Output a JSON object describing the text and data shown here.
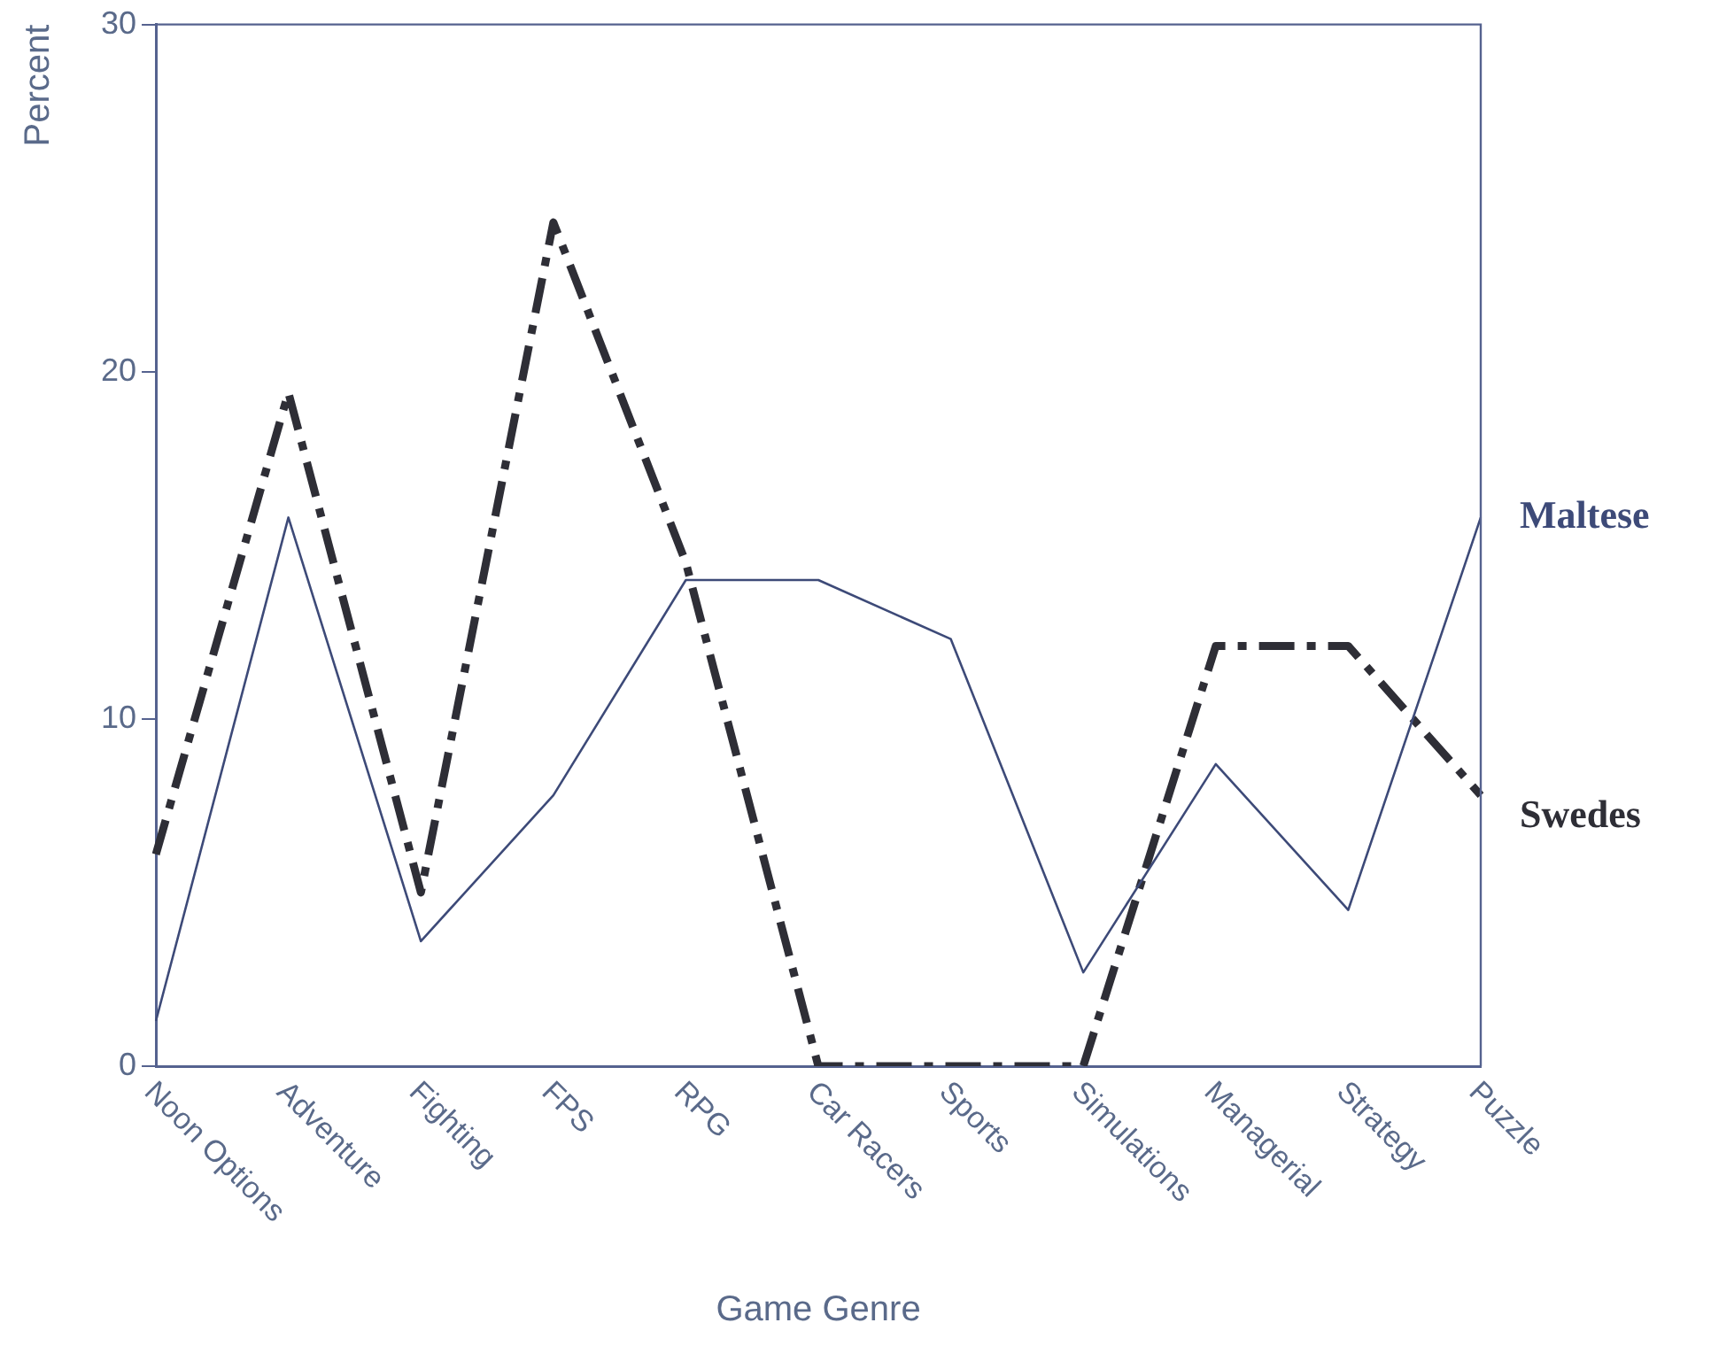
{
  "chart_data": {
    "type": "line",
    "xlabel": "Game Genre",
    "ylabel": "Percent",
    "categories": [
      "Noon Options",
      "Adventure",
      "Fighting",
      "FPS",
      "RPG",
      "Car Racers",
      "Sports",
      "Simulations",
      "Managerial",
      "Strategy",
      "Puzzle"
    ],
    "series": [
      {
        "name": "Maltese",
        "color": "#3d4a78",
        "line_style": "solid",
        "values": [
          1.3,
          15.8,
          3.6,
          7.8,
          14,
          14,
          12.3,
          2.7,
          8.7,
          4.5,
          15.8
        ]
      },
      {
        "name": "Swedes",
        "color": "#2e2e36",
        "line_style": "dashed",
        "values": [
          6.1,
          19.4,
          5,
          24.3,
          14.5,
          0,
          0,
          0,
          12.1,
          12.1,
          7.8
        ]
      }
    ],
    "ylim": [
      0,
      30
    ],
    "yticks": [
      0,
      10,
      20,
      30
    ],
    "grid": false,
    "legend": false,
    "marker": "none"
  }
}
